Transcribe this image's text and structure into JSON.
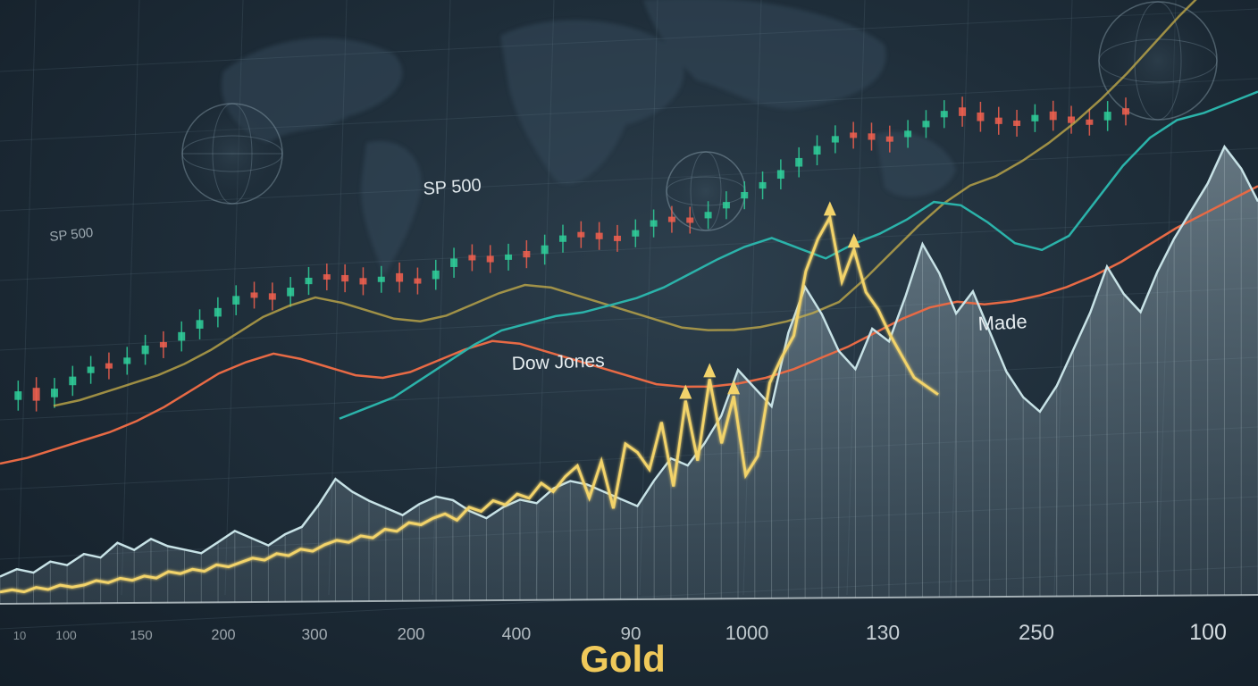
{
  "chart_data": {
    "type": "line",
    "title": "Gold",
    "labels": {
      "sp500_left": "SP 500",
      "sp500_center": "SP 500",
      "dow_jones": "Dow Jones",
      "made": "Made"
    },
    "x_ticks": [
      "10",
      "100",
      "150",
      "200",
      "300",
      "200",
      "400",
      "90",
      "1000",
      "130",
      "250",
      "100"
    ],
    "grid": true,
    "colors": {
      "gold": "#f2d36b",
      "candle_up": "#2fcf9a",
      "candle_down": "#f2604f",
      "orange": "#e86a45",
      "teal": "#2bb3aa",
      "pale": "#b9d8dc",
      "olive": "#c9b04a"
    },
    "series": [
      {
        "key": "gold",
        "values": [
          3,
          4,
          3,
          5,
          4,
          6,
          5,
          6,
          8,
          7,
          9,
          8,
          10,
          9,
          12,
          11,
          13,
          12,
          15,
          14,
          16,
          18,
          17,
          20,
          19,
          22,
          21,
          24,
          26,
          25,
          28,
          27,
          31,
          30,
          34,
          33,
          36,
          38,
          35,
          41,
          39,
          44,
          42,
          47,
          45,
          52,
          48,
          55,
          60,
          45,
          62,
          40,
          70,
          66,
          58,
          80,
          50,
          90,
          62,
          100,
          70,
          92,
          55,
          64,
          98,
          110,
          120,
          150,
          165,
          175,
          145,
          160,
          140,
          132,
          120,
          110,
          100,
          96,
          92
        ]
      },
      {
        "key": "pale",
        "values": [
          10,
          14,
          12,
          18,
          16,
          22,
          20,
          28,
          24,
          30,
          26,
          24,
          22,
          28,
          34,
          30,
          26,
          32,
          36,
          48,
          62,
          55,
          50,
          46,
          42,
          48,
          52,
          50,
          44,
          40,
          46,
          50,
          48,
          56,
          60,
          58,
          54,
          50,
          46,
          60,
          72,
          68,
          80,
          95,
          120,
          110,
          100,
          140,
          165,
          150,
          130,
          120,
          142,
          135,
          160,
          188,
          172,
          150,
          162,
          140,
          118,
          104,
          96,
          110,
          130,
          150,
          175,
          160,
          150,
          172,
          190,
          205,
          220,
          240,
          228,
          210
        ]
      },
      {
        "key": "orange",
        "values": [
          40,
          44,
          50,
          56,
          62,
          70,
          80,
          92,
          104,
          112,
          118,
          114,
          108,
          102,
          100,
          104,
          112,
          120,
          126,
          124,
          118,
          112,
          106,
          100,
          94,
          92,
          92,
          94,
          98,
          104,
          112,
          120,
          130,
          140,
          148,
          152,
          150,
          152,
          156,
          162,
          170,
          180,
          192,
          204,
          214,
          224,
          234
        ]
      },
      {
        "key": "teal",
        "values": [
          28,
          34,
          40,
          50,
          60,
          70,
          78,
          82,
          86,
          88,
          92,
          96,
          102,
          110,
          118,
          125,
          130,
          124,
          118,
          126,
          132,
          140,
          150,
          148,
          138,
          126,
          122,
          130,
          150,
          170,
          186,
          196,
          200,
          206,
          212
        ]
      }
    ],
    "candles": "ohlc sequence",
    "candle_values": [
      62,
      70,
      58,
      66,
      74,
      80,
      76,
      82,
      90,
      88,
      96,
      104,
      112,
      120,
      116,
      110,
      118,
      124,
      120,
      114,
      108,
      112,
      104,
      100,
      108,
      116,
      112,
      106,
      110,
      104,
      112,
      118,
      114,
      108,
      104,
      110,
      116,
      112,
      108,
      114,
      120,
      126,
      132,
      140,
      148,
      156,
      162,
      158,
      152,
      148,
      154,
      160,
      166,
      158,
      150,
      144,
      140,
      146,
      138,
      132,
      128,
      136,
      130
    ]
  }
}
